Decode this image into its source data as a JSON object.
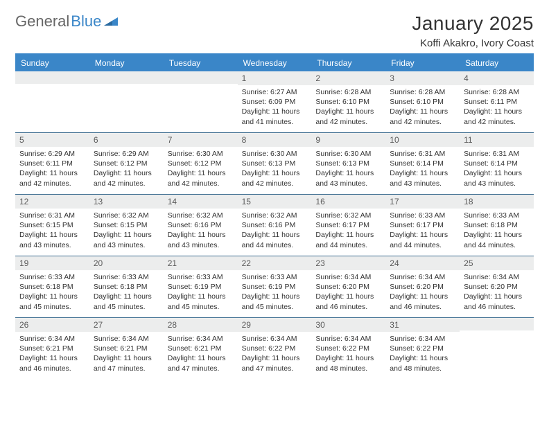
{
  "brand": {
    "part1": "General",
    "part2": "Blue"
  },
  "title": "January 2025",
  "subtitle": "Koffi Akakro, Ivory Coast",
  "colors": {
    "accent": "#3a86c8",
    "header_bg": "#3a86c8",
    "header_text": "#ffffff",
    "daynum_bg": "#eceded",
    "daynum_text": "#5a5a5a",
    "border": "#3a6b8f",
    "text": "#333333",
    "page_bg": "#ffffff"
  },
  "daynames": [
    "Sunday",
    "Monday",
    "Tuesday",
    "Wednesday",
    "Thursday",
    "Friday",
    "Saturday"
  ],
  "layout": {
    "first_weekday_index": 3,
    "days_in_month": 31
  },
  "labels": {
    "sunrise": "Sunrise:",
    "sunset": "Sunset:",
    "daylight": "Daylight:"
  },
  "days": {
    "1": {
      "sunrise": "6:27 AM",
      "sunset": "6:09 PM",
      "daylight": "11 hours and 41 minutes."
    },
    "2": {
      "sunrise": "6:28 AM",
      "sunset": "6:10 PM",
      "daylight": "11 hours and 42 minutes."
    },
    "3": {
      "sunrise": "6:28 AM",
      "sunset": "6:10 PM",
      "daylight": "11 hours and 42 minutes."
    },
    "4": {
      "sunrise": "6:28 AM",
      "sunset": "6:11 PM",
      "daylight": "11 hours and 42 minutes."
    },
    "5": {
      "sunrise": "6:29 AM",
      "sunset": "6:11 PM",
      "daylight": "11 hours and 42 minutes."
    },
    "6": {
      "sunrise": "6:29 AM",
      "sunset": "6:12 PM",
      "daylight": "11 hours and 42 minutes."
    },
    "7": {
      "sunrise": "6:30 AM",
      "sunset": "6:12 PM",
      "daylight": "11 hours and 42 minutes."
    },
    "8": {
      "sunrise": "6:30 AM",
      "sunset": "6:13 PM",
      "daylight": "11 hours and 42 minutes."
    },
    "9": {
      "sunrise": "6:30 AM",
      "sunset": "6:13 PM",
      "daylight": "11 hours and 43 minutes."
    },
    "10": {
      "sunrise": "6:31 AM",
      "sunset": "6:14 PM",
      "daylight": "11 hours and 43 minutes."
    },
    "11": {
      "sunrise": "6:31 AM",
      "sunset": "6:14 PM",
      "daylight": "11 hours and 43 minutes."
    },
    "12": {
      "sunrise": "6:31 AM",
      "sunset": "6:15 PM",
      "daylight": "11 hours and 43 minutes."
    },
    "13": {
      "sunrise": "6:32 AM",
      "sunset": "6:15 PM",
      "daylight": "11 hours and 43 minutes."
    },
    "14": {
      "sunrise": "6:32 AM",
      "sunset": "6:16 PM",
      "daylight": "11 hours and 43 minutes."
    },
    "15": {
      "sunrise": "6:32 AM",
      "sunset": "6:16 PM",
      "daylight": "11 hours and 44 minutes."
    },
    "16": {
      "sunrise": "6:32 AM",
      "sunset": "6:17 PM",
      "daylight": "11 hours and 44 minutes."
    },
    "17": {
      "sunrise": "6:33 AM",
      "sunset": "6:17 PM",
      "daylight": "11 hours and 44 minutes."
    },
    "18": {
      "sunrise": "6:33 AM",
      "sunset": "6:18 PM",
      "daylight": "11 hours and 44 minutes."
    },
    "19": {
      "sunrise": "6:33 AM",
      "sunset": "6:18 PM",
      "daylight": "11 hours and 45 minutes."
    },
    "20": {
      "sunrise": "6:33 AM",
      "sunset": "6:18 PM",
      "daylight": "11 hours and 45 minutes."
    },
    "21": {
      "sunrise": "6:33 AM",
      "sunset": "6:19 PM",
      "daylight": "11 hours and 45 minutes."
    },
    "22": {
      "sunrise": "6:33 AM",
      "sunset": "6:19 PM",
      "daylight": "11 hours and 45 minutes."
    },
    "23": {
      "sunrise": "6:34 AM",
      "sunset": "6:20 PM",
      "daylight": "11 hours and 46 minutes."
    },
    "24": {
      "sunrise": "6:34 AM",
      "sunset": "6:20 PM",
      "daylight": "11 hours and 46 minutes."
    },
    "25": {
      "sunrise": "6:34 AM",
      "sunset": "6:20 PM",
      "daylight": "11 hours and 46 minutes."
    },
    "26": {
      "sunrise": "6:34 AM",
      "sunset": "6:21 PM",
      "daylight": "11 hours and 46 minutes."
    },
    "27": {
      "sunrise": "6:34 AM",
      "sunset": "6:21 PM",
      "daylight": "11 hours and 47 minutes."
    },
    "28": {
      "sunrise": "6:34 AM",
      "sunset": "6:21 PM",
      "daylight": "11 hours and 47 minutes."
    },
    "29": {
      "sunrise": "6:34 AM",
      "sunset": "6:22 PM",
      "daylight": "11 hours and 47 minutes."
    },
    "30": {
      "sunrise": "6:34 AM",
      "sunset": "6:22 PM",
      "daylight": "11 hours and 48 minutes."
    },
    "31": {
      "sunrise": "6:34 AM",
      "sunset": "6:22 PM",
      "daylight": "11 hours and 48 minutes."
    }
  }
}
